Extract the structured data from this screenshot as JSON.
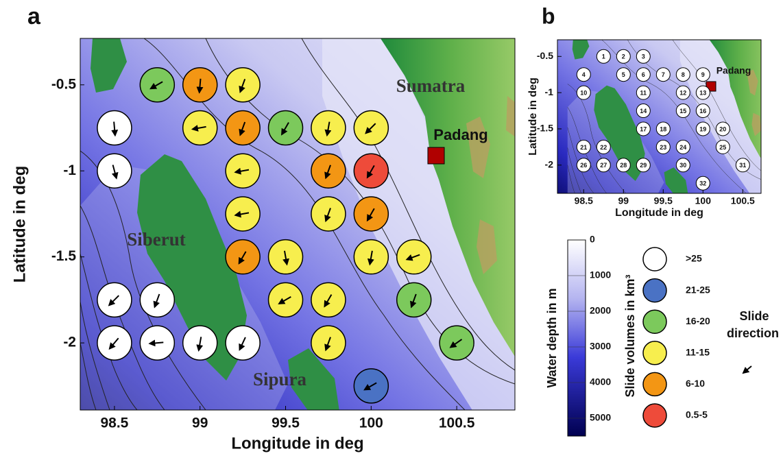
{
  "map_a": {
    "panel_label": "a",
    "x_label": "Longitude in deg",
    "y_label": "Latitude in deg",
    "xlim": [
      98.3,
      100.84
    ],
    "ylim": [
      -2.39,
      -0.23
    ],
    "xticks": [
      98.5,
      99,
      99.5,
      100,
      100.5
    ],
    "yticks": [
      -0.5,
      -1,
      -1.5,
      -2
    ]
  },
  "map_b": {
    "panel_label": "b",
    "x_label": "Longitude in deg",
    "y_label": "Latitude in deg",
    "xlim": [
      98.17,
      100.73
    ],
    "ylim": [
      -2.39,
      -0.27
    ],
    "xticks": [
      98.5,
      99,
      99.5,
      100,
      100.5
    ],
    "yticks": [
      -0.5,
      -1,
      -1.5,
      -2
    ]
  },
  "places": {
    "sumatra": "Sumatra",
    "siberut": "Siberut",
    "sipura": "Sipura",
    "padang": "Padang"
  },
  "colorbar": {
    "label": "Water depth in m",
    "lim": [
      0,
      5500
    ],
    "ticks": [
      0,
      1000,
      2000,
      3000,
      4000,
      5000
    ]
  },
  "volume_legend": {
    "title": "Slide volumes in km³",
    "classes": [
      {
        "label": ">25",
        "color": "#ffffff"
      },
      {
        "label": "21-25",
        "color": "#4a72c4"
      },
      {
        "label": "16-20",
        "color": "#7cc95c"
      },
      {
        "label": "11-15",
        "color": "#f7ee4e"
      },
      {
        "label": "6-10",
        "color": "#f39614"
      },
      {
        "label": "0.5-5",
        "color": "#ee4b3a"
      }
    ]
  },
  "direction_legend": [
    "Slide",
    "direction"
  ],
  "sites": [
    {
      "label": "1",
      "lon": 98.75,
      "lat": -0.5,
      "volume": "16-20",
      "direction": 240
    },
    {
      "label": "2",
      "lon": 99,
      "lat": -0.5,
      "volume": "6-10",
      "direction": 185
    },
    {
      "label": "3",
      "lon": 99.25,
      "lat": -0.5,
      "volume": "11-15",
      "direction": 200
    },
    {
      "label": "4",
      "lon": 98.5,
      "lat": -0.75,
      "volume": ">25",
      "direction": 175
    },
    {
      "label": "5",
      "lon": 99,
      "lat": -0.75,
      "volume": "11-15",
      "direction": 260
    },
    {
      "label": "6",
      "lon": 99.25,
      "lat": -0.75,
      "volume": "6-10",
      "direction": 200
    },
    {
      "label": "7",
      "lon": 99.5,
      "lat": -0.75,
      "volume": "16-20",
      "direction": 210
    },
    {
      "label": "8",
      "lon": 99.75,
      "lat": -0.75,
      "volume": "11-15",
      "direction": 190
    },
    {
      "label": "9",
      "lon": 100,
      "lat": -0.75,
      "volume": "11-15",
      "direction": 225
    },
    {
      "label": "10",
      "lon": 98.5,
      "lat": -1,
      "volume": ">25",
      "direction": 165
    },
    {
      "label": "11",
      "lon": 99.25,
      "lat": -1,
      "volume": "11-15",
      "direction": 260
    },
    {
      "label": "12",
      "lon": 99.75,
      "lat": -1,
      "volume": "6-10",
      "direction": 200
    },
    {
      "label": "13",
      "lon": 100,
      "lat": -1,
      "volume": "0.5-5",
      "direction": 210
    },
    {
      "label": "14",
      "lon": 99.25,
      "lat": -1.25,
      "volume": "11-15",
      "direction": 260
    },
    {
      "label": "15",
      "lon": 99.75,
      "lat": -1.25,
      "volume": "11-15",
      "direction": 200
    },
    {
      "label": "16",
      "lon": 100,
      "lat": -1.25,
      "volume": "6-10",
      "direction": 210
    },
    {
      "label": "17",
      "lon": 99.25,
      "lat": -1.5,
      "volume": "6-10",
      "direction": 210
    },
    {
      "label": "18",
      "lon": 99.5,
      "lat": -1.5,
      "volume": "11-15",
      "direction": 170
    },
    {
      "label": "19",
      "lon": 100,
      "lat": -1.5,
      "volume": "11-15",
      "direction": 190
    },
    {
      "label": "20",
      "lon": 100.25,
      "lat": -1.5,
      "volume": "11-15",
      "direction": 250
    },
    {
      "label": "21",
      "lon": 98.5,
      "lat": -1.75,
      "volume": ">25",
      "direction": 225
    },
    {
      "label": "22",
      "lon": 98.75,
      "lat": -1.75,
      "volume": ">25",
      "direction": 200
    },
    {
      "label": "23",
      "lon": 99.5,
      "lat": -1.75,
      "volume": "11-15",
      "direction": 240
    },
    {
      "label": "24",
      "lon": 99.75,
      "lat": -1.75,
      "volume": "11-15",
      "direction": 210
    },
    {
      "label": "25",
      "lon": 100.25,
      "lat": -1.75,
      "volume": "16-20",
      "direction": 200
    },
    {
      "label": "26",
      "lon": 98.5,
      "lat": -2,
      "volume": ">25",
      "direction": 220
    },
    {
      "label": "27",
      "lon": 98.75,
      "lat": -2,
      "volume": ">25",
      "direction": 265
    },
    {
      "label": "28",
      "lon": 99,
      "lat": -2,
      "volume": ">25",
      "direction": 190
    },
    {
      "label": "29",
      "lon": 99.25,
      "lat": -2,
      "volume": ">25",
      "direction": 205
    },
    {
      "label": "30",
      "lon": 99.75,
      "lat": -2,
      "volume": "11-15",
      "direction": 200
    },
    {
      "label": "31",
      "lon": 100.5,
      "lat": -2,
      "volume": "16-20",
      "direction": 235
    },
    {
      "label": "32",
      "lon": 100,
      "lat": -2.25,
      "volume": "21-25",
      "direction": 240
    }
  ]
}
